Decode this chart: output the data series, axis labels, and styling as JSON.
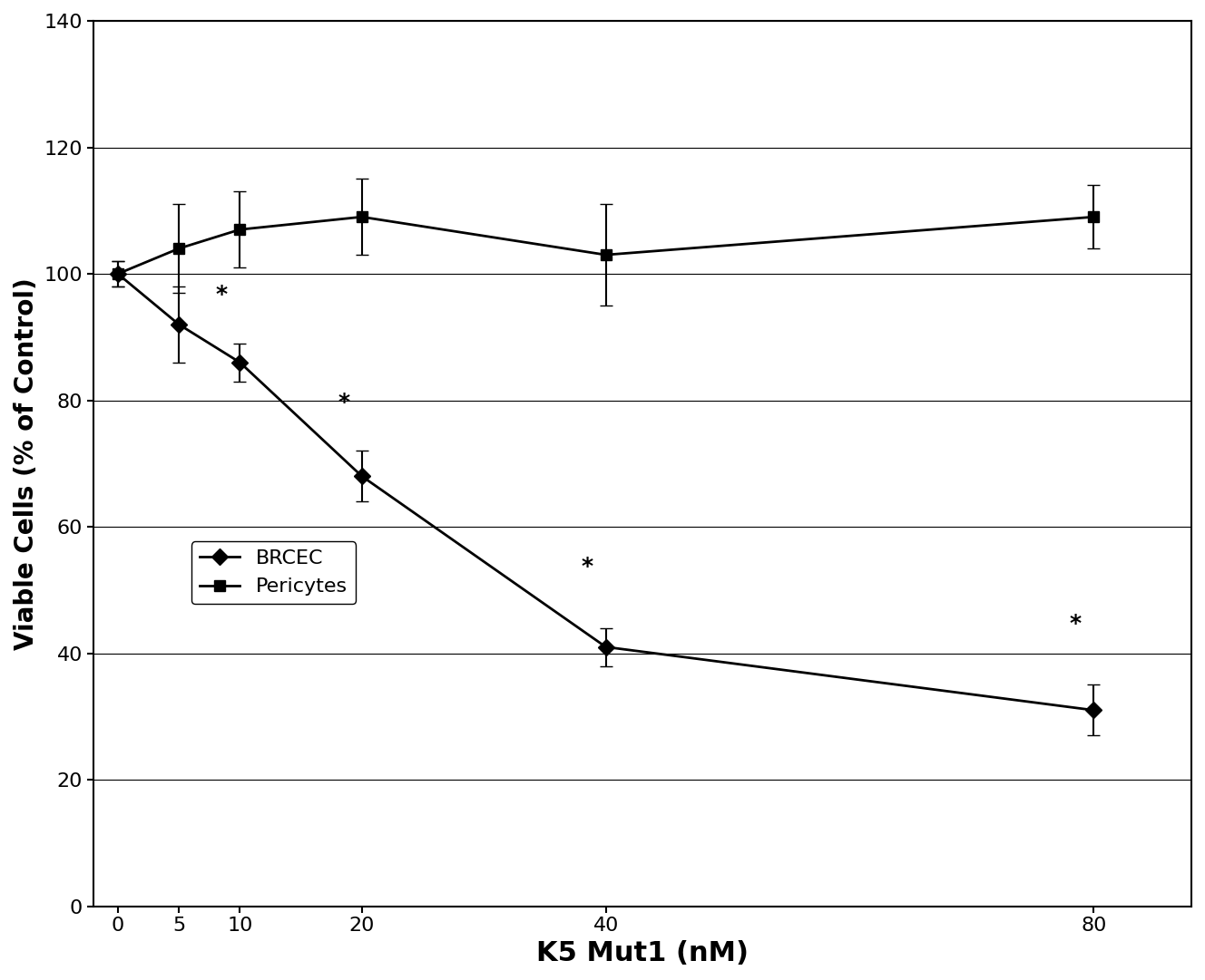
{
  "x": [
    0,
    5,
    10,
    20,
    40,
    80
  ],
  "brcec_y": [
    100,
    92,
    86,
    68,
    41,
    31
  ],
  "brcec_yerr": [
    2,
    6,
    3,
    4,
    3,
    4
  ],
  "pericytes_y": [
    100,
    104,
    107,
    109,
    103,
    109
  ],
  "pericytes_yerr": [
    2,
    7,
    6,
    6,
    8,
    5
  ],
  "brcec_significant": [
    false,
    false,
    true,
    true,
    true,
    true
  ],
  "pericytes_significant": [
    false,
    false,
    false,
    false,
    false,
    false
  ],
  "xlabel": "K5 Mut1 (nM)",
  "ylabel": "Viable Cells (% of Control)",
  "xlim": [
    -2,
    88
  ],
  "ylim": [
    0,
    140
  ],
  "yticks": [
    0,
    20,
    40,
    60,
    80,
    100,
    120,
    140
  ],
  "xticks": [
    0,
    5,
    10,
    20,
    40,
    80
  ],
  "legend_labels": [
    "BRCEC",
    "Pericytes"
  ],
  "line_color": "#000000",
  "marker_brcec": "D",
  "marker_pericytes": "s",
  "markersize": 9,
  "linewidth": 2.0,
  "capsize": 5,
  "elinewidth": 1.5,
  "star_fontsize": 18,
  "axis_fontsize": 20,
  "tick_fontsize": 16,
  "legend_fontsize": 16,
  "xlabel_fontsize": 22,
  "ylabel_fontsize": 20
}
